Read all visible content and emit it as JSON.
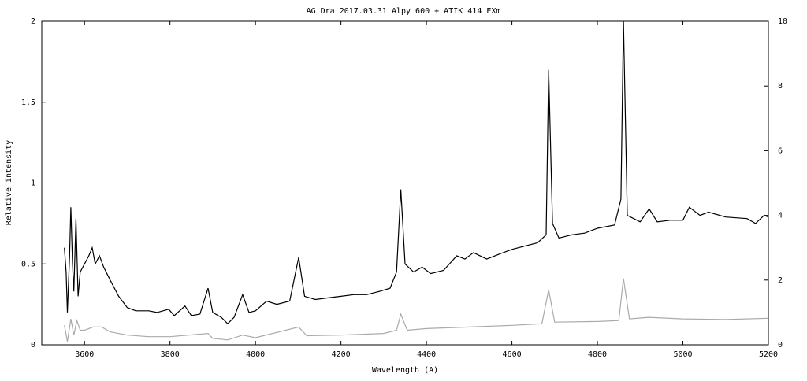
{
  "chart_data": {
    "type": "line",
    "title": "AG Dra 2017.03.31 Alpy 600 + ATIK 414 EXm",
    "xlabel": "Wavelength (A)",
    "ylabel": "Relative intensity",
    "xlim": [
      3500,
      5200
    ],
    "xticks": [
      3600,
      3800,
      4000,
      4200,
      4400,
      4600,
      4800,
      5000,
      5200
    ],
    "ylim": [
      0,
      2
    ],
    "yticks": [
      0,
      0.5,
      1,
      1.5,
      2
    ],
    "y2lim": [
      0,
      10
    ],
    "y2ticks": [
      0,
      2,
      4,
      6,
      8,
      10
    ],
    "series": [
      {
        "color": "#000000",
        "x": [
          3553,
          3557,
          3560,
          3565,
          3568,
          3572,
          3575,
          3580,
          3585,
          3590,
          3600,
          3610,
          3618,
          3625,
          3635,
          3645,
          3660,
          3680,
          3700,
          3720,
          3750,
          3770,
          3797,
          3810,
          3835,
          3850,
          3870,
          3889,
          3900,
          3920,
          3935,
          3950,
          3970,
          3985,
          4000,
          4026,
          4050,
          4080,
          4101,
          4115,
          4140,
          4170,
          4200,
          4230,
          4260,
          4290,
          4315,
          4330,
          4340,
          4350,
          4370,
          4390,
          4410,
          4440,
          4471,
          4490,
          4510,
          4541,
          4570,
          4600,
          4630,
          4660,
          4680,
          4686,
          4695,
          4710,
          4740,
          4770,
          4800,
          4840,
          4855,
          4861,
          4870,
          4900,
          4921,
          4940,
          4970,
          5000,
          5015,
          5040,
          5060,
          5100,
          5150,
          5170,
          5190,
          5200
        ],
        "values": [
          0.6,
          0.45,
          0.2,
          0.55,
          0.85,
          0.5,
          0.33,
          0.78,
          0.3,
          0.45,
          0.5,
          0.55,
          0.6,
          0.5,
          0.55,
          0.48,
          0.4,
          0.3,
          0.23,
          0.21,
          0.21,
          0.2,
          0.22,
          0.18,
          0.24,
          0.18,
          0.19,
          0.35,
          0.2,
          0.17,
          0.13,
          0.17,
          0.31,
          0.2,
          0.21,
          0.27,
          0.25,
          0.27,
          0.54,
          0.3,
          0.28,
          0.29,
          0.3,
          0.31,
          0.31,
          0.33,
          0.35,
          0.45,
          0.96,
          0.5,
          0.45,
          0.48,
          0.44,
          0.46,
          0.55,
          0.53,
          0.57,
          0.53,
          0.56,
          0.59,
          0.61,
          0.63,
          0.68,
          1.7,
          0.75,
          0.66,
          0.68,
          0.69,
          0.72,
          0.74,
          0.9,
          2.0,
          0.8,
          0.76,
          0.84,
          0.76,
          0.77,
          0.77,
          0.85,
          0.8,
          0.82,
          0.79,
          0.78,
          0.75,
          0.8,
          0.79
        ]
      },
      {
        "color": "#aaaaaa",
        "axis": "y2",
        "x": [
          3553,
          3560,
          3568,
          3575,
          3582,
          3590,
          3600,
          3620,
          3640,
          3660,
          3700,
          3750,
          3800,
          3889,
          3900,
          3935,
          3970,
          4000,
          4101,
          4120,
          4200,
          4300,
          4330,
          4340,
          4355,
          4400,
          4500,
          4600,
          4670,
          4686,
          4700,
          4800,
          4850,
          4861,
          4875,
          4920,
          5000,
          5100,
          5200
        ],
        "values": [
          0.6,
          0.1,
          0.8,
          0.3,
          0.75,
          0.45,
          0.45,
          0.55,
          0.55,
          0.4,
          0.3,
          0.25,
          0.25,
          0.35,
          0.2,
          0.15,
          0.3,
          0.22,
          0.55,
          0.28,
          0.3,
          0.35,
          0.45,
          0.95,
          0.45,
          0.5,
          0.55,
          0.6,
          0.65,
          1.7,
          0.7,
          0.72,
          0.75,
          2.05,
          0.8,
          0.85,
          0.8,
          0.78,
          0.82
        ]
      }
    ]
  }
}
